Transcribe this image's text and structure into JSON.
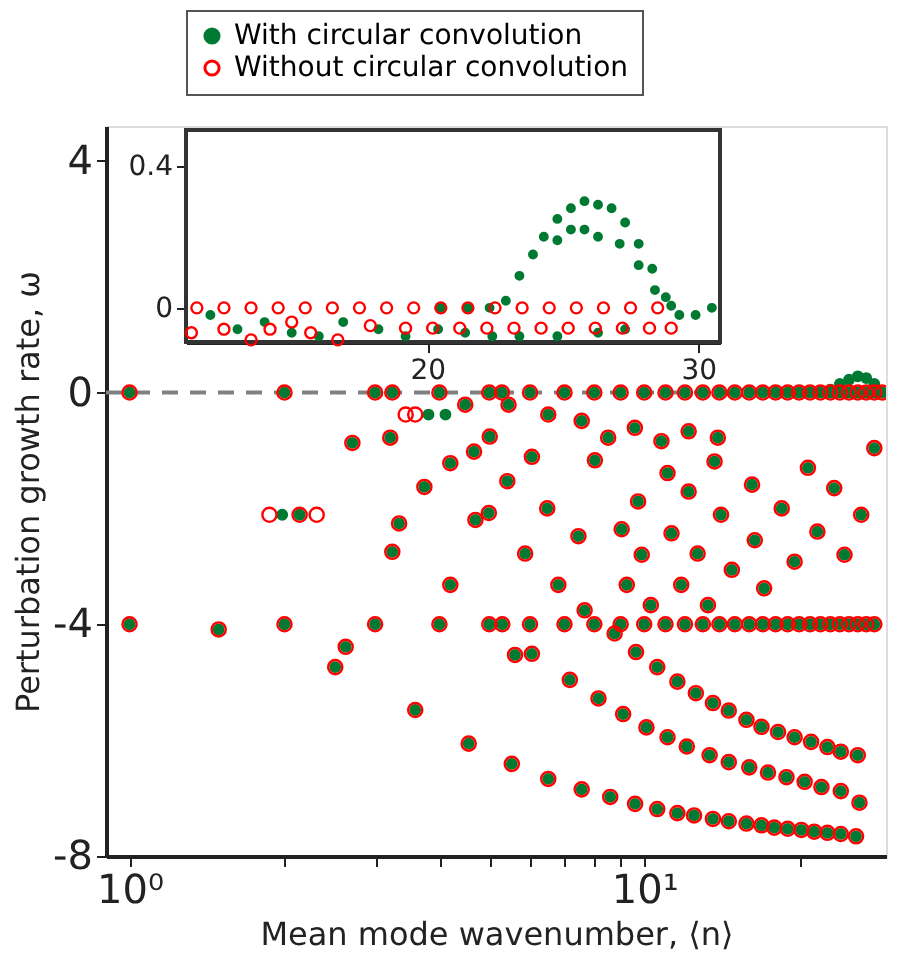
{
  "chart_data": [
    {
      "type": "scatter",
      "xlabel": "Mean mode wavenumber, ⟨n⟩",
      "ylabel": "Perturbation growth rate, ω",
      "log": "x",
      "marker": "circle",
      "legend": "top",
      "grid": false,
      "xlim": [
        0.9,
        29.5
      ],
      "ylim": [
        -8,
        4.6
      ],
      "xticks": [
        {
          "value": 1,
          "label": "10⁰"
        },
        {
          "value": 2,
          "label": null
        },
        {
          "value": 3,
          "label": null
        },
        {
          "value": 4,
          "label": null
        },
        {
          "value": 5,
          "label": null
        },
        {
          "value": 6,
          "label": null
        },
        {
          "value": 7,
          "label": null
        },
        {
          "value": 8,
          "label": null
        },
        {
          "value": 9,
          "label": null
        },
        {
          "value": 10,
          "label": "10¹"
        },
        {
          "value": 20,
          "label": null
        }
      ],
      "yticks": [
        -8,
        -4,
        0,
        4
      ],
      "ref_lines": [
        {
          "axis": "y",
          "value": 0,
          "label": null,
          "color": "#808080",
          "line_style": "dashed"
        }
      ],
      "series": [
        {
          "name": "With circular convolution",
          "color": "#007a33",
          "x": [
            1,
            2,
            3,
            3.24,
            4,
            5,
            5.29,
            6,
            7,
            8,
            9,
            10,
            11,
            12,
            13,
            14,
            15,
            16,
            17,
            18,
            19,
            20,
            21,
            22,
            23,
            24,
            25,
            26,
            27,
            28,
            29,
            1,
            1.49,
            2,
            3,
            4,
            5,
            5.3,
            6,
            7,
            8,
            9,
            10,
            11,
            12,
            13,
            14,
            15,
            16,
            17,
            18,
            19,
            20,
            21,
            22,
            23,
            24,
            25,
            26,
            27,
            28,
            2.14,
            3.59,
            4.56,
            5.53,
            6.51,
            7.56,
            8.59,
            9.6,
            10.6,
            11.6,
            12.5,
            13.6,
            14.6,
            15.8,
            16.9,
            17.9,
            19,
            20.2,
            21.4,
            22.7,
            24.1,
            25.8,
            7.17,
            8.15,
            9.1,
            10.1,
            11.1,
            12.1,
            13.4,
            14.6,
            16,
            17.4,
            18.9,
            20.5,
            22.1,
            24.1,
            26.2,
            9.64,
            10.6,
            11.6,
            12.6,
            13.6,
            14.6,
            15.8,
            16.9,
            18.2,
            19.6,
            21.1,
            22.7,
            24.1,
            26,
            2.51,
            2.63,
            5.61,
            2.71,
            3.21,
            3.74,
            4.2,
            4.49,
            4.67,
            5.01,
            4.99,
            4.7,
            3.34,
            3.24,
            4.2,
            5.42,
            6.05,
            6.48,
            5.87,
            6.81,
            7.45,
            8.02,
            9.04,
            9.25,
            9.73,
            9.89,
            10.3,
            11.1,
            11.3,
            11.8,
            12.2,
            12.7,
            13.3,
            13.7,
            14.1,
            14.8,
            16.2,
            16.4,
            17.1,
            18.5,
            19.6,
            20.8,
            21.7,
            23.4,
            24.5,
            26.4,
            28,
            5.45,
            6.51,
            7.56,
            8.51,
            9.59,
            10.8,
            12.2,
            13.9,
            6.05,
            7.66,
            8.76,
            1.98,
            3.81,
            4.11,
            23,
            24,
            25,
            26,
            27,
            28
          ],
          "values": [
            0,
            0,
            0,
            0,
            0,
            0,
            0,
            0,
            0,
            0,
            0,
            0,
            0,
            0,
            0,
            0,
            0,
            0,
            0,
            0,
            0,
            0,
            0,
            0,
            0,
            0,
            0,
            0,
            0,
            0,
            0,
            -4,
            -4.09,
            -4,
            -4,
            -4,
            -4,
            -4,
            -4,
            -4,
            -4,
            -4,
            -4,
            -4,
            -4,
            -4,
            -4,
            -4,
            -4,
            -4,
            -4,
            -4,
            -4,
            -4,
            -4,
            -4,
            -4,
            -4,
            -4,
            -4,
            -4,
            -2.11,
            -5.48,
            -6.06,
            -6.41,
            -6.67,
            -6.85,
            -6.98,
            -7.1,
            -7.19,
            -7.26,
            -7.3,
            -7.36,
            -7.4,
            -7.44,
            -7.47,
            -7.51,
            -7.53,
            -7.55,
            -7.58,
            -7.6,
            -7.62,
            -7.66,
            -4.96,
            -5.28,
            -5.55,
            -5.78,
            -5.95,
            -6.11,
            -6.26,
            -6.38,
            -6.47,
            -6.56,
            -6.64,
            -6.72,
            -6.81,
            -6.88,
            -7.08,
            -4.48,
            -4.74,
            -4.99,
            -5.19,
            -5.36,
            -5.49,
            -5.65,
            -5.77,
            -5.86,
            -5.95,
            -6.03,
            -6.12,
            -6.2,
            -6.26,
            -4.74,
            -4.39,
            -4.53,
            -0.87,
            -0.78,
            -1.63,
            -1.22,
            -0.21,
            -1.02,
            -0.76,
            -2.08,
            -2.2,
            -2.26,
            -2.75,
            -3.32,
            -1.53,
            -1.11,
            -2,
            -2.78,
            -3.32,
            -2.48,
            -1.17,
            -2.36,
            -3.32,
            -1.88,
            -2.8,
            -3.67,
            -1.39,
            -2.43,
            -3.32,
            -1.71,
            -2.78,
            -3.67,
            -1.19,
            -2.11,
            -3.06,
            -1.59,
            -2.55,
            -3.38,
            -2,
            -2.92,
            -1.3,
            -2.4,
            -1.65,
            -2.8,
            -2.11,
            -0.96,
            -0.21,
            -0.38,
            -0.49,
            -0.78,
            -0.61,
            -0.84,
            -0.67,
            -0.78,
            -4.51,
            -3.76,
            -4.16,
            -2.11,
            -0.38,
            -0.38,
            0.05,
            0.15,
            0.22,
            0.28,
            0.25,
            0.15
          ]
        },
        {
          "name": "Without circular convolution",
          "color": "#ff0000",
          "x": [
            1,
            2,
            3,
            3.24,
            4,
            5,
            5.29,
            6,
            7,
            8,
            9,
            10,
            11,
            12,
            13,
            14,
            15,
            16,
            17,
            18,
            19,
            20,
            21,
            22,
            23,
            24,
            25,
            26,
            27,
            28,
            29,
            1,
            1.49,
            2,
            3,
            4,
            5,
            5.3,
            6,
            7,
            8,
            9,
            10,
            11,
            12,
            13,
            14,
            15,
            16,
            17,
            18,
            19,
            20,
            21,
            22,
            23,
            24,
            25,
            26,
            27,
            28,
            2.14,
            3.59,
            4.56,
            5.53,
            6.51,
            7.56,
            8.59,
            9.6,
            10.6,
            11.6,
            12.5,
            13.6,
            14.6,
            15.8,
            16.9,
            17.9,
            19,
            20.2,
            21.4,
            22.7,
            24.1,
            25.8,
            7.17,
            8.15,
            9.1,
            10.1,
            11.1,
            12.1,
            13.4,
            14.6,
            16,
            17.4,
            18.9,
            20.5,
            22.1,
            24.1,
            26.2,
            9.64,
            10.6,
            11.6,
            12.6,
            13.6,
            14.6,
            15.8,
            16.9,
            18.2,
            19.6,
            21.1,
            22.7,
            24.1,
            26,
            2.51,
            2.63,
            5.61,
            2.71,
            3.21,
            3.74,
            4.2,
            4.49,
            4.67,
            5.01,
            4.99,
            4.7,
            3.34,
            3.24,
            4.2,
            5.42,
            6.05,
            6.48,
            5.87,
            6.81,
            7.45,
            8.02,
            9.04,
            9.25,
            9.73,
            9.89,
            10.3,
            11.1,
            11.3,
            11.8,
            12.2,
            12.7,
            13.3,
            13.7,
            14.1,
            14.8,
            16.2,
            16.4,
            17.1,
            18.5,
            19.6,
            20.8,
            21.7,
            23.4,
            24.5,
            26.4,
            28,
            5.45,
            6.51,
            7.56,
            8.51,
            9.59,
            10.8,
            12.2,
            13.9,
            6.05,
            7.66,
            8.76,
            1.87,
            2.31,
            3.44,
            3.59
          ],
          "values": [
            0,
            0,
            0,
            0,
            0,
            0,
            0,
            0,
            0,
            0,
            0,
            0,
            0,
            0,
            0,
            0,
            0,
            0,
            0,
            0,
            0,
            0,
            0,
            0,
            0,
            0,
            0,
            0,
            0,
            0,
            0,
            -4,
            -4.09,
            -4,
            -4,
            -4,
            -4,
            -4,
            -4,
            -4,
            -4,
            -4,
            -4,
            -4,
            -4,
            -4,
            -4,
            -4,
            -4,
            -4,
            -4,
            -4,
            -4,
            -4,
            -4,
            -4,
            -4,
            -4,
            -4,
            -4,
            -4,
            -2.11,
            -5.48,
            -6.06,
            -6.41,
            -6.67,
            -6.85,
            -6.98,
            -7.1,
            -7.19,
            -7.26,
            -7.3,
            -7.36,
            -7.4,
            -7.44,
            -7.47,
            -7.51,
            -7.53,
            -7.55,
            -7.58,
            -7.6,
            -7.62,
            -7.66,
            -4.96,
            -5.28,
            -5.55,
            -5.78,
            -5.95,
            -6.11,
            -6.26,
            -6.38,
            -6.47,
            -6.56,
            -6.64,
            -6.72,
            -6.81,
            -6.88,
            -7.08,
            -4.48,
            -4.74,
            -4.99,
            -5.19,
            -5.36,
            -5.49,
            -5.65,
            -5.77,
            -5.86,
            -5.95,
            -6.03,
            -6.12,
            -6.2,
            -6.26,
            -4.74,
            -4.39,
            -4.53,
            -0.87,
            -0.78,
            -1.63,
            -1.22,
            -0.21,
            -1.02,
            -0.76,
            -2.08,
            -2.2,
            -2.26,
            -2.75,
            -3.32,
            -1.53,
            -1.11,
            -2,
            -2.78,
            -3.32,
            -2.48,
            -1.17,
            -2.36,
            -3.32,
            -1.88,
            -2.8,
            -3.67,
            -1.39,
            -2.43,
            -3.32,
            -1.71,
            -2.78,
            -3.67,
            -1.19,
            -2.11,
            -3.06,
            -1.59,
            -2.55,
            -3.38,
            -2,
            -2.92,
            -1.3,
            -2.4,
            -1.65,
            -2.8,
            -2.11,
            -0.96,
            -0.21,
            -0.38,
            -0.49,
            -0.78,
            -0.61,
            -0.84,
            -0.67,
            -0.78,
            -4.51,
            -3.76,
            -4.16,
            -2.11,
            -2.11,
            -0.38,
            -0.38
          ]
        }
      ]
    },
    {
      "type": "scatter",
      "marker": "circle",
      "grid": false,
      "xlim": [
        11.1,
        30.8
      ],
      "ylim": [
        -0.096,
        0.5
      ],
      "xticks": [
        20,
        30
      ],
      "yticks": [
        0,
        0.4
      ],
      "series": [
        {
          "color": "#007a33",
          "x": [
            22.9,
            23.4,
            23.9,
            24.3,
            24.8,
            25.3,
            25.8,
            26.3,
            26.8,
            27.3,
            27.8,
            28.3,
            28.8,
            24.8,
            25.3,
            25.8,
            26.3,
            27.1,
            27.8,
            28.4,
            29,
            29.3,
            29.9,
            30.5,
            20.4,
            21.4,
            22.4,
            23.4,
            24.8,
            26.3,
            27.3,
            12,
            13,
            14,
            15,
            16,
            16.9,
            18.2,
            19.2,
            20.5,
            21.5,
            22.3
          ],
          "values": [
            0.02,
            0.09,
            0.15,
            0.2,
            0.25,
            0.28,
            0.3,
            0.29,
            0.28,
            0.24,
            0.18,
            0.11,
            0.03,
            0.19,
            0.22,
            0.22,
            0.2,
            0.18,
            0.12,
            0.05,
            0.006,
            -0.02,
            -0.02,
            0,
            -0.06,
            -0.07,
            -0.08,
            -0.08,
            -0.08,
            -0.07,
            -0.06,
            -0.02,
            -0.06,
            -0.04,
            -0.07,
            -0.08,
            -0.04,
            -0.06,
            -0.08,
            0,
            0,
            0
          ]
        },
        {
          "color": "#ff0000",
          "x": [
            11.5,
            12.5,
            13.5,
            14.5,
            15.5,
            16.5,
            17.5,
            18.5,
            19.5,
            20.5,
            21.5,
            22.5,
            23.5,
            24.5,
            25.5,
            26.5,
            27.5,
            28.5,
            19.2,
            20.2,
            21.2,
            22.2,
            23.2,
            24.2,
            25.2,
            26.2,
            27.2,
            28.2,
            29,
            11.3,
            12.5,
            13.5,
            14.2,
            15,
            15.7,
            16.7,
            17.9
          ],
          "values": [
            0,
            0,
            0,
            0,
            0,
            0,
            0,
            0,
            0,
            0,
            0,
            0,
            0,
            0,
            0,
            0,
            0,
            0,
            -0.057,
            -0.057,
            -0.057,
            -0.057,
            -0.057,
            -0.057,
            -0.057,
            -0.057,
            -0.057,
            -0.057,
            -0.057,
            -0.07,
            -0.06,
            -0.09,
            -0.06,
            -0.04,
            -0.07,
            -0.09,
            -0.05
          ]
        }
      ]
    }
  ]
}
